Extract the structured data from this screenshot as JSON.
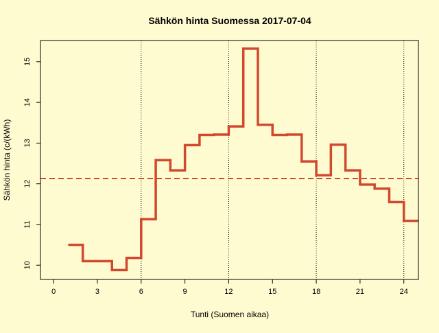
{
  "chart_data": {
    "type": "line",
    "step": true,
    "title": "Sähkön hinta Suomessa 2017-07-04",
    "xlabel": "Tunti (Suomen aikaa)",
    "ylabel": "Sähkön hinta (c/(kWh)",
    "xlim": [
      -0.9,
      25
    ],
    "ylim": [
      9.65,
      15.52
    ],
    "xticks": [
      0,
      3,
      6,
      9,
      12,
      15,
      18,
      21,
      24
    ],
    "xtick_labels": [
      "0",
      "3",
      "6",
      "9",
      "12",
      "15",
      "18",
      "21",
      "24"
    ],
    "yticks": [
      10,
      11,
      12,
      13,
      14,
      15
    ],
    "ytick_labels": [
      "10",
      "11",
      "12",
      "13",
      "14",
      "15"
    ],
    "vlines": [
      6,
      12,
      18,
      24
    ],
    "mean_line": 12.13,
    "series": [
      {
        "x": [
          1,
          2,
          3,
          4,
          5,
          6,
          7,
          8,
          9,
          10,
          11,
          12,
          13,
          14,
          15,
          16,
          17,
          18,
          19,
          20,
          21,
          22,
          23,
          24,
          25
        ],
        "values": [
          10.5,
          10.1,
          10.1,
          9.88,
          10.18,
          11.13,
          12.58,
          12.33,
          12.95,
          13.2,
          13.21,
          13.41,
          15.32,
          13.45,
          13.2,
          13.21,
          12.55,
          12.21,
          12.96,
          12.33,
          11.98,
          11.88,
          11.55,
          11.09,
          11.09
        ],
        "color": "#d2482e"
      }
    ],
    "mean_color": "#d2482e",
    "grid": false
  }
}
